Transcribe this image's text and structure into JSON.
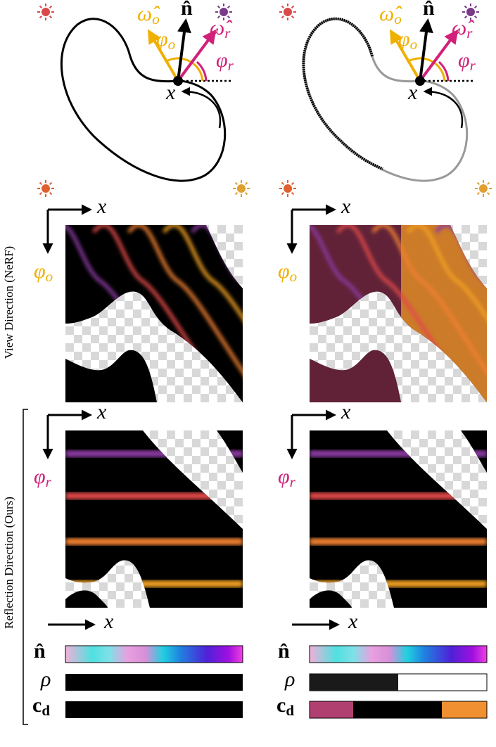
{
  "diagrams": [
    {
      "labels": {
        "omega_o": {
          "symbol": "ω̂",
          "sub": "o"
        },
        "normal": "n̂",
        "omega_r": {
          "symbol": "ω̂",
          "sub": "r"
        },
        "phi_o": {
          "symbol": "φ",
          "sub": "o"
        },
        "phi_r": {
          "symbol": "φ",
          "sub": "r"
        },
        "point": "x"
      }
    },
    {
      "labels": {
        "omega_o": {
          "symbol": "ω̂",
          "sub": "o"
        },
        "normal": "n̂",
        "omega_r": {
          "symbol": "ω̂",
          "sub": "r"
        },
        "phi_o": {
          "symbol": "φ",
          "sub": "o"
        },
        "phi_r": {
          "symbol": "φ",
          "sub": "r"
        },
        "point": "x"
      }
    }
  ],
  "rows": [
    {
      "label": "View Direction (NeRF)",
      "panels": [
        {
          "x_axis": "x",
          "y_axis": {
            "symbol": "φ",
            "sub": "o"
          }
        },
        {
          "x_axis": "x",
          "y_axis": {
            "symbol": "φ",
            "sub": "o"
          }
        }
      ]
    },
    {
      "label": "Reflection Direction (Ours)",
      "panels": [
        {
          "x_axis": "x",
          "y_axis": {
            "symbol": "φ",
            "sub": "r"
          }
        },
        {
          "x_axis": "x",
          "y_axis": {
            "symbol": "φ",
            "sub": "r"
          }
        }
      ]
    }
  ],
  "strips": [
    {
      "x_axis": "x",
      "normal": "n̂",
      "roughness": "ρ",
      "diffuse": {
        "symbol": "c",
        "sub": "d"
      }
    },
    {
      "x_axis": "x",
      "normal": "n̂",
      "roughness": "ρ",
      "diffuse": {
        "symbol": "c",
        "sub": "d"
      }
    }
  ]
}
